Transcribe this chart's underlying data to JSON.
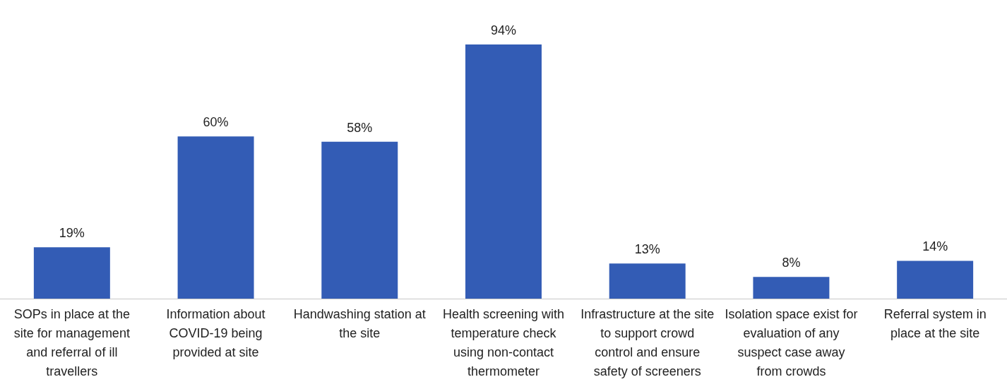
{
  "chart_data": {
    "type": "bar",
    "categories": [
      "SOPs in place at the site for management and referral of ill travellers",
      "Information about COVID-19 being provided at site",
      "Handwashing station at the site",
      "Health screening with temperature check using non-contact thermometer",
      "Infrastructure at the site to support crowd control and ensure safety of screeners",
      "Isolation space exist for evaluation of any suspect case away from crowds",
      "Referral system in place at the site"
    ],
    "values": [
      19,
      60,
      58,
      94,
      13,
      8,
      14
    ],
    "value_labels": [
      "19%",
      "60%",
      "58%",
      "94%",
      "13%",
      "8%",
      "14%"
    ],
    "color": "#335cb5",
    "grid": false,
    "legend": false
  }
}
